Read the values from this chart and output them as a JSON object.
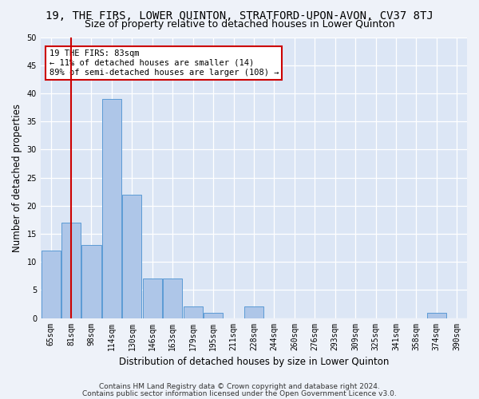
{
  "title": "19, THE FIRS, LOWER QUINTON, STRATFORD-UPON-AVON, CV37 8TJ",
  "subtitle": "Size of property relative to detached houses in Lower Quinton",
  "xlabel": "Distribution of detached houses by size in Lower Quinton",
  "ylabel": "Number of detached properties",
  "footer1": "Contains HM Land Registry data © Crown copyright and database right 2024.",
  "footer2": "Contains public sector information licensed under the Open Government Licence v3.0.",
  "bin_labels": [
    "65sqm",
    "81sqm",
    "98sqm",
    "114sqm",
    "130sqm",
    "146sqm",
    "163sqm",
    "179sqm",
    "195sqm",
    "211sqm",
    "228sqm",
    "244sqm",
    "260sqm",
    "276sqm",
    "293sqm",
    "309sqm",
    "325sqm",
    "341sqm",
    "358sqm",
    "374sqm",
    "390sqm"
  ],
  "counts": [
    12,
    17,
    13,
    39,
    22,
    7,
    7,
    2,
    1,
    0,
    2,
    0,
    0,
    0,
    0,
    0,
    0,
    0,
    0,
    1,
    0
  ],
  "bar_color": "#aec6e8",
  "bar_edge_color": "#5b9bd5",
  "vline_index": 1.0,
  "vline_color": "#cc0000",
  "annotation_text": "19 THE FIRS: 83sqm\n← 11% of detached houses are smaller (14)\n89% of semi-detached houses are larger (108) →",
  "annotation_box_color": "#ffffff",
  "annotation_box_edge_color": "#cc0000",
  "ylim": [
    0,
    50
  ],
  "yticks": [
    0,
    5,
    10,
    15,
    20,
    25,
    30,
    35,
    40,
    45,
    50
  ],
  "fig_bg_color": "#eef2f9",
  "plot_bg_color": "#dce6f5",
  "grid_color": "#ffffff",
  "title_fontsize": 10,
  "subtitle_fontsize": 9,
  "label_fontsize": 8.5,
  "tick_fontsize": 7,
  "footer_fontsize": 6.5,
  "annotation_fontsize": 7.5
}
